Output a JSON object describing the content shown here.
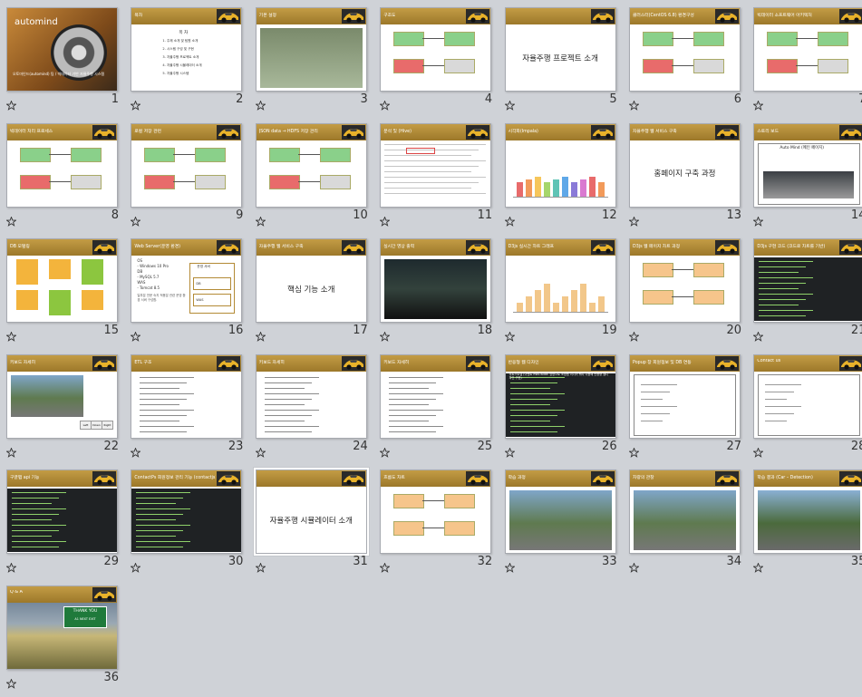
{
  "view": "slide-sorter",
  "colors": {
    "background": "#cfd2d7",
    "header_gold": "#b38a35",
    "selection": "#ffffff"
  },
  "slides": [
    {
      "num": "1",
      "kind": "cover",
      "title": "automind",
      "caption": "오토마인드(automind) 팀 / 빅데이터 기반 자율주행 시스템"
    },
    {
      "num": "2",
      "kind": "toc",
      "title": "목차",
      "body_title": "목 차",
      "items": [
        "1. 주제 소개 및 팀원 소개",
        "2. 시스템 구성 및 구현",
        "3. 자율주행 프로젝트 소개",
        "4. 자율주행 시뮬레이터 소개",
        "5. 자율주행 시스템"
      ]
    },
    {
      "num": "3",
      "kind": "map",
      "title": "기본 설정"
    },
    {
      "num": "4",
      "kind": "diagram",
      "title": "구조도"
    },
    {
      "num": "5",
      "kind": "section",
      "title": "자율주행 프로젝트 소개"
    },
    {
      "num": "6",
      "kind": "diagram",
      "title": "클러스터(CentOS 6.8) 환경구성"
    },
    {
      "num": "7",
      "kind": "diagram",
      "title": "빅데이터 소프트웨어 아키텍처"
    },
    {
      "num": "8",
      "kind": "diagram",
      "title": "빅데이터 처리 프로세스"
    },
    {
      "num": "9",
      "kind": "diagram",
      "title": "로컬 저장 관련"
    },
    {
      "num": "10",
      "kind": "diagram",
      "title": "JSON data → HDFS 저장 관리"
    },
    {
      "num": "11",
      "kind": "table",
      "title": "분석 및 (Hive)"
    },
    {
      "num": "12",
      "kind": "chart",
      "title": "시각화(Impala)"
    },
    {
      "num": "13",
      "kind": "section",
      "title": "홈페이지 구축 과정",
      "small_title": "자율주행 웹 서비스 구축"
    },
    {
      "num": "14",
      "kind": "web",
      "title": "스토리 보드",
      "web_title": "Auto Mind (메인 페이지)"
    },
    {
      "num": "15",
      "kind": "db",
      "title": "DB 모델링"
    },
    {
      "num": "16",
      "kind": "list",
      "title": "Web Server(운영 환경)",
      "items": [
        "OS",
        "- Windows 10 Pro",
        "DB",
        "- MySQL 5.7",
        "WAS",
        "- Tomcat 8.5"
      ],
      "note": "일부분 전문 숙지 적용분 관련 운영 환경 서버 구성함.",
      "boxes": [
        "운영 서버",
        "DB",
        "WAS"
      ]
    },
    {
      "num": "17",
      "kind": "section",
      "title": "핵심 기능 소개",
      "small_title": "자율주행 웹 서비스 구축"
    },
    {
      "num": "18",
      "kind": "photo",
      "title": "실시간 영상 출력"
    },
    {
      "num": "19",
      "kind": "chart",
      "title": "D3js 실시간 차트 그래프"
    },
    {
      "num": "20",
      "kind": "flow",
      "title": "D3js 웹 페이지 차트 과정"
    },
    {
      "num": "21",
      "kind": "code",
      "title": "D3js 구현 코드 (코드로 차트를 기반)"
    },
    {
      "num": "22",
      "kind": "photo",
      "title": "키보드 자세히",
      "keys": [
        "Left",
        "Down",
        "Right"
      ]
    },
    {
      "num": "23",
      "kind": "code",
      "title": "ETL 구조"
    },
    {
      "num": "24",
      "kind": "code",
      "title": "키보드 자세히"
    },
    {
      "num": "25",
      "kind": "code",
      "title": "키보드 자세히"
    },
    {
      "num": "26",
      "kind": "code",
      "title": "반응형 웹 디자인",
      "note": "부트스트랩 (이벤트 max-width 방향으로 조정됨 미디어 쿼리 이용해 반응형 웹디자인 구현)"
    },
    {
      "num": "27",
      "kind": "web",
      "title": "Popup 창 회원정보 및 DB 연동"
    },
    {
      "num": "28",
      "kind": "web",
      "title": "Contact us"
    },
    {
      "num": "29",
      "kind": "code",
      "title": "구글맵 api 기능"
    },
    {
      "num": "30",
      "kind": "code",
      "title": "ContactPs 회원정보 관리 기능 (contactjs)"
    },
    {
      "num": "31",
      "kind": "section",
      "title": "자율주행 시뮬레이터 소개",
      "selected": true
    },
    {
      "num": "32",
      "kind": "flow",
      "title": "흐름도 차트"
    },
    {
      "num": "33",
      "kind": "photo",
      "title": "학습 과정"
    },
    {
      "num": "34",
      "kind": "photo",
      "title": "차량의 관찰"
    },
    {
      "num": "35",
      "kind": "photo",
      "title": "학습 결과 (Car – Detection)"
    },
    {
      "num": "36",
      "kind": "photo",
      "title": "Q & A",
      "sign": [
        "THANK YOU",
        "A1 NEXT EXIT"
      ]
    }
  ]
}
